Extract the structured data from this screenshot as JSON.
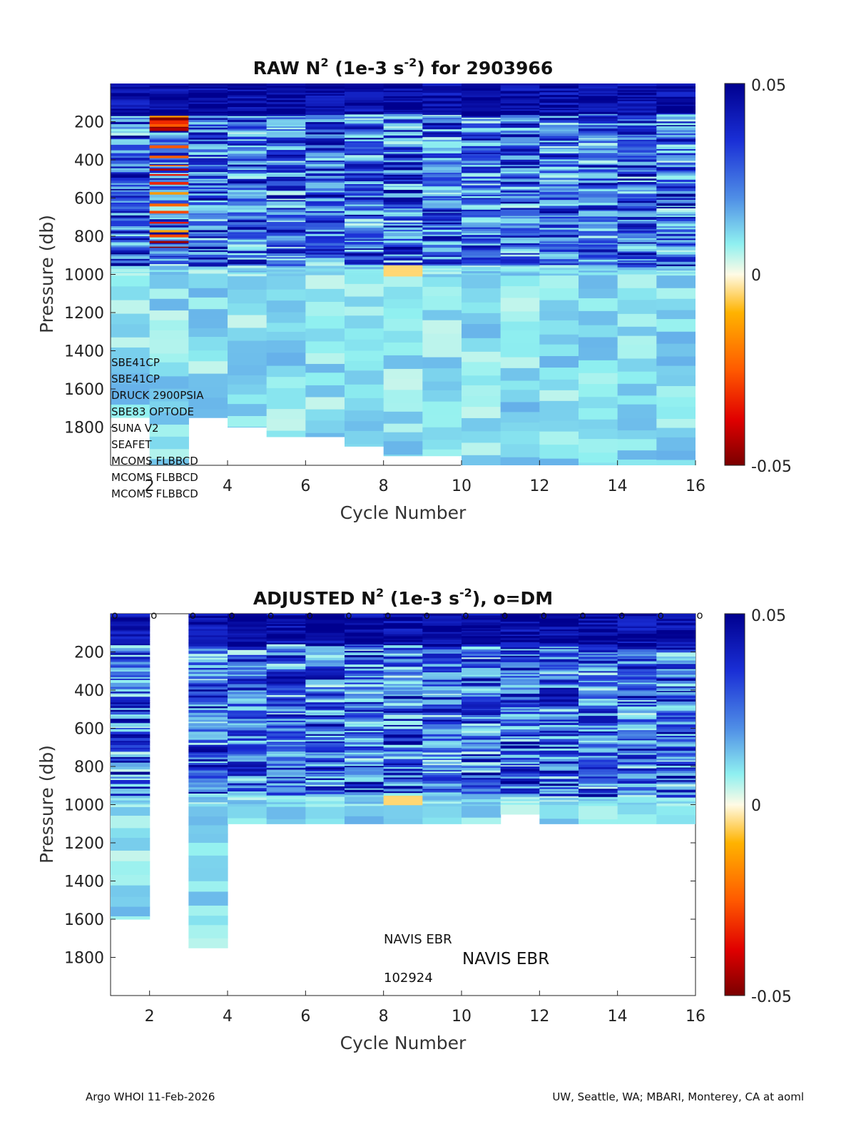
{
  "float_id": "2903966",
  "chart_data": [
    {
      "type": "heatmap",
      "id": "raw",
      "title_prefix": "RAW N",
      "title_sup": "2",
      "title_units_a": " (1e-3 s",
      "title_units_sup": "-2",
      "title_units_b": ") for 2903966",
      "xlabel": "Cycle Number",
      "ylabel": "Pressure (db)",
      "xticks": [
        2,
        4,
        6,
        8,
        10,
        12,
        14,
        16
      ],
      "yticks": [
        200,
        400,
        600,
        800,
        1000,
        1200,
        1400,
        1600,
        1800
      ],
      "xlim": [
        1,
        16
      ],
      "ylim": [
        0,
        2000
      ],
      "colorbar": {
        "min": -0.05,
        "max": 0.05,
        "ticks": [
          "0.05",
          "0",
          "-0.05"
        ]
      },
      "cycles": [
        1,
        2,
        3,
        4,
        5,
        6,
        7,
        8,
        9,
        10,
        11,
        12,
        13,
        14,
        15
      ],
      "max_pressure": [
        1750,
        2000,
        1750,
        1800,
        1850,
        1850,
        1900,
        1950,
        1950,
        2000,
        2000,
        2000,
        2000,
        2000,
        2000
      ],
      "note": "Cycle 2 shows strong negative (unstable) N2 values between 150 and 850 db; cycle 8 shows a near-zero band near 1000 db."
    },
    {
      "type": "heatmap",
      "id": "adjusted",
      "title_prefix": "ADJUSTED N",
      "title_sup": "2",
      "title_units_a": " (1e-3 s",
      "title_units_sup": "-2",
      "title_units_b": "), o=DM",
      "xlabel": "Cycle Number",
      "ylabel": "Pressure (db)",
      "xticks": [
        2,
        4,
        6,
        8,
        10,
        12,
        14,
        16
      ],
      "yticks": [
        200,
        400,
        600,
        800,
        1000,
        1200,
        1400,
        1600,
        1800
      ],
      "xlim": [
        1,
        16
      ],
      "ylim": [
        0,
        2000
      ],
      "colorbar": {
        "min": -0.05,
        "max": 0.05,
        "ticks": [
          "0.05",
          "0",
          "-0.05"
        ]
      },
      "cycles": [
        1,
        2,
        3,
        4,
        5,
        6,
        7,
        8,
        9,
        10,
        11,
        12,
        13,
        14,
        15
      ],
      "max_pressure": [
        1600,
        0,
        1750,
        1100,
        1100,
        1100,
        1100,
        1100,
        1100,
        1100,
        1050,
        1100,
        1100,
        1100,
        1100
      ],
      "dm_marker": "o",
      "dm_cycles": [
        1,
        2,
        3,
        4,
        5,
        6,
        7,
        8,
        9,
        10,
        11,
        12,
        13,
        14,
        15,
        16
      ]
    }
  ],
  "sensors": [
    "SBE41CP",
    "SBE41CP",
    "DRUCK 2900PSIA",
    "SBE83 OPTODE",
    "SUNA V2",
    "SEAFET",
    "MCOMS FLBBCD",
    "MCOMS FLBBCD",
    "MCOMS FLBBCD"
  ],
  "platform": {
    "label_small": "NAVIS EBR",
    "label_large": "NAVIS EBR",
    "serial": "102924"
  },
  "footer": {
    "left": "Argo WHOI 11-Feb-2026",
    "right": "UW, Seattle, WA; MBARI, Monterey, CA at aoml"
  },
  "colors": {
    "axis": "#222222",
    "text": "#111111"
  }
}
